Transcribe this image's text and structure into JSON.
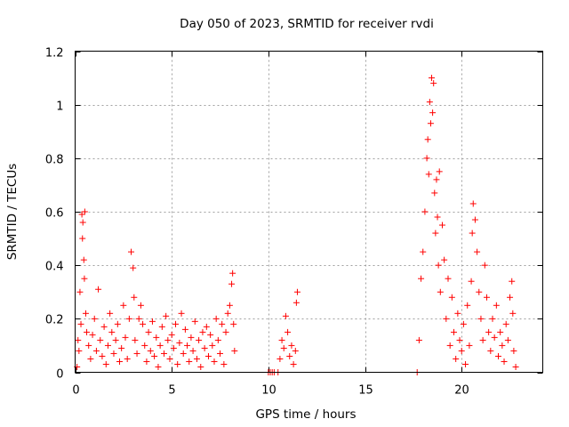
{
  "chart_data": {
    "type": "scatter",
    "title": "Day 050 of 2023, SRMTID for receiver rvdi",
    "xlabel": "GPS time / hours",
    "ylabel": "SRMTID / TECUs",
    "xlim": [
      0,
      24.2
    ],
    "ylim": [
      0,
      1.2
    ],
    "xticks": [
      0,
      5,
      10,
      15,
      20
    ],
    "xtick_labels": [
      "0",
      "5",
      "10",
      "15",
      "20"
    ],
    "yticks": [
      0,
      0.2,
      0.4,
      0.6,
      0.8,
      1.0,
      1.2
    ],
    "ytick_labels": [
      "0",
      "0.2",
      "0.4",
      "0.6",
      "0.8",
      "1",
      "1.2"
    ],
    "grid": true,
    "marker": "+",
    "color": "#ff0000",
    "series": [
      {
        "name": "SRMTID",
        "points": [
          [
            0.1,
            0.02
          ],
          [
            0.15,
            0.12
          ],
          [
            0.2,
            0.08
          ],
          [
            0.25,
            0.3
          ],
          [
            0.3,
            0.18
          ],
          [
            0.35,
            0.59
          ],
          [
            0.38,
            0.5
          ],
          [
            0.4,
            0.56
          ],
          [
            0.45,
            0.42
          ],
          [
            0.48,
            0.35
          ],
          [
            0.5,
            0.6
          ],
          [
            0.55,
            0.22
          ],
          [
            0.6,
            0.15
          ],
          [
            0.7,
            0.1
          ],
          [
            0.8,
            0.05
          ],
          [
            0.9,
            0.14
          ],
          [
            1.0,
            0.2
          ],
          [
            1.1,
            0.08
          ],
          [
            1.2,
            0.31
          ],
          [
            1.3,
            0.12
          ],
          [
            1.4,
            0.06
          ],
          [
            1.5,
            0.17
          ],
          [
            1.6,
            0.03
          ],
          [
            1.7,
            0.1
          ],
          [
            1.8,
            0.22
          ],
          [
            1.9,
            0.15
          ],
          [
            2.0,
            0.07
          ],
          [
            2.1,
            0.12
          ],
          [
            2.2,
            0.18
          ],
          [
            2.3,
            0.04
          ],
          [
            2.4,
            0.09
          ],
          [
            2.5,
            0.25
          ],
          [
            2.6,
            0.13
          ],
          [
            2.7,
            0.05
          ],
          [
            2.8,
            0.2
          ],
          [
            2.9,
            0.45
          ],
          [
            3.0,
            0.39
          ],
          [
            3.05,
            0.28
          ],
          [
            3.1,
            0.12
          ],
          [
            3.2,
            0.07
          ],
          [
            3.3,
            0.2
          ],
          [
            3.4,
            0.25
          ],
          [
            3.5,
            0.18
          ],
          [
            3.6,
            0.1
          ],
          [
            3.7,
            0.04
          ],
          [
            3.8,
            0.15
          ],
          [
            3.9,
            0.08
          ],
          [
            4.0,
            0.19
          ],
          [
            4.1,
            0.06
          ],
          [
            4.2,
            0.13
          ],
          [
            4.3,
            0.02
          ],
          [
            4.4,
            0.1
          ],
          [
            4.5,
            0.17
          ],
          [
            4.6,
            0.07
          ],
          [
            4.7,
            0.21
          ],
          [
            4.8,
            0.12
          ],
          [
            4.9,
            0.05
          ],
          [
            5.0,
            0.14
          ],
          [
            5.1,
            0.09
          ],
          [
            5.2,
            0.18
          ],
          [
            5.3,
            0.03
          ],
          [
            5.4,
            0.11
          ],
          [
            5.5,
            0.22
          ],
          [
            5.6,
            0.07
          ],
          [
            5.7,
            0.16
          ],
          [
            5.8,
            0.1
          ],
          [
            5.9,
            0.04
          ],
          [
            6.0,
            0.13
          ],
          [
            6.1,
            0.08
          ],
          [
            6.2,
            0.19
          ],
          [
            6.3,
            0.05
          ],
          [
            6.4,
            0.12
          ],
          [
            6.5,
            0.02
          ],
          [
            6.6,
            0.15
          ],
          [
            6.7,
            0.09
          ],
          [
            6.8,
            0.17
          ],
          [
            6.9,
            0.06
          ],
          [
            7.0,
            0.14
          ],
          [
            7.1,
            0.1
          ],
          [
            7.2,
            0.04
          ],
          [
            7.3,
            0.2
          ],
          [
            7.4,
            0.12
          ],
          [
            7.5,
            0.07
          ],
          [
            7.6,
            0.18
          ],
          [
            7.7,
            0.03
          ],
          [
            7.8,
            0.15
          ],
          [
            7.9,
            0.22
          ],
          [
            8.0,
            0.25
          ],
          [
            8.1,
            0.33
          ],
          [
            8.15,
            0.37
          ],
          [
            8.2,
            0.18
          ],
          [
            8.25,
            0.08
          ],
          [
            10.0,
            0.0
          ],
          [
            10.1,
            0.0
          ],
          [
            10.2,
            0.0
          ],
          [
            10.3,
            0.0
          ],
          [
            10.5,
            0.0
          ],
          [
            10.6,
            0.05
          ],
          [
            10.7,
            0.12
          ],
          [
            10.8,
            0.09
          ],
          [
            10.9,
            0.21
          ],
          [
            11.0,
            0.15
          ],
          [
            11.1,
            0.06
          ],
          [
            11.2,
            0.1
          ],
          [
            11.3,
            0.03
          ],
          [
            11.4,
            0.08
          ],
          [
            11.45,
            0.26
          ],
          [
            11.5,
            0.3
          ],
          [
            17.7,
            0.0
          ],
          [
            17.8,
            0.12
          ],
          [
            17.9,
            0.35
          ],
          [
            18.0,
            0.45
          ],
          [
            18.1,
            0.6
          ],
          [
            18.2,
            0.8
          ],
          [
            18.25,
            0.87
          ],
          [
            18.3,
            0.74
          ],
          [
            18.35,
            1.01
          ],
          [
            18.4,
            0.93
          ],
          [
            18.45,
            1.1
          ],
          [
            18.5,
            0.97
          ],
          [
            18.55,
            1.08
          ],
          [
            18.6,
            0.67
          ],
          [
            18.65,
            0.52
          ],
          [
            18.7,
            0.72
          ],
          [
            18.75,
            0.58
          ],
          [
            18.8,
            0.4
          ],
          [
            18.85,
            0.75
          ],
          [
            18.9,
            0.3
          ],
          [
            19.0,
            0.55
          ],
          [
            19.1,
            0.42
          ],
          [
            19.2,
            0.2
          ],
          [
            19.3,
            0.35
          ],
          [
            19.4,
            0.1
          ],
          [
            19.5,
            0.28
          ],
          [
            19.6,
            0.15
          ],
          [
            19.7,
            0.05
          ],
          [
            19.8,
            0.22
          ],
          [
            19.9,
            0.12
          ],
          [
            20.0,
            0.08
          ],
          [
            20.1,
            0.18
          ],
          [
            20.2,
            0.03
          ],
          [
            20.3,
            0.25
          ],
          [
            20.4,
            0.1
          ],
          [
            20.5,
            0.34
          ],
          [
            20.55,
            0.52
          ],
          [
            20.6,
            0.63
          ],
          [
            20.7,
            0.57
          ],
          [
            20.8,
            0.45
          ],
          [
            20.9,
            0.3
          ],
          [
            21.0,
            0.2
          ],
          [
            21.1,
            0.12
          ],
          [
            21.2,
            0.4
          ],
          [
            21.3,
            0.28
          ],
          [
            21.4,
            0.15
          ],
          [
            21.5,
            0.08
          ],
          [
            21.6,
            0.2
          ],
          [
            21.7,
            0.13
          ],
          [
            21.8,
            0.25
          ],
          [
            21.9,
            0.06
          ],
          [
            22.0,
            0.15
          ],
          [
            22.1,
            0.1
          ],
          [
            22.2,
            0.04
          ],
          [
            22.3,
            0.18
          ],
          [
            22.4,
            0.12
          ],
          [
            22.5,
            0.28
          ],
          [
            22.6,
            0.34
          ],
          [
            22.65,
            0.22
          ],
          [
            22.7,
            0.08
          ],
          [
            22.8,
            0.02
          ]
        ]
      }
    ]
  }
}
